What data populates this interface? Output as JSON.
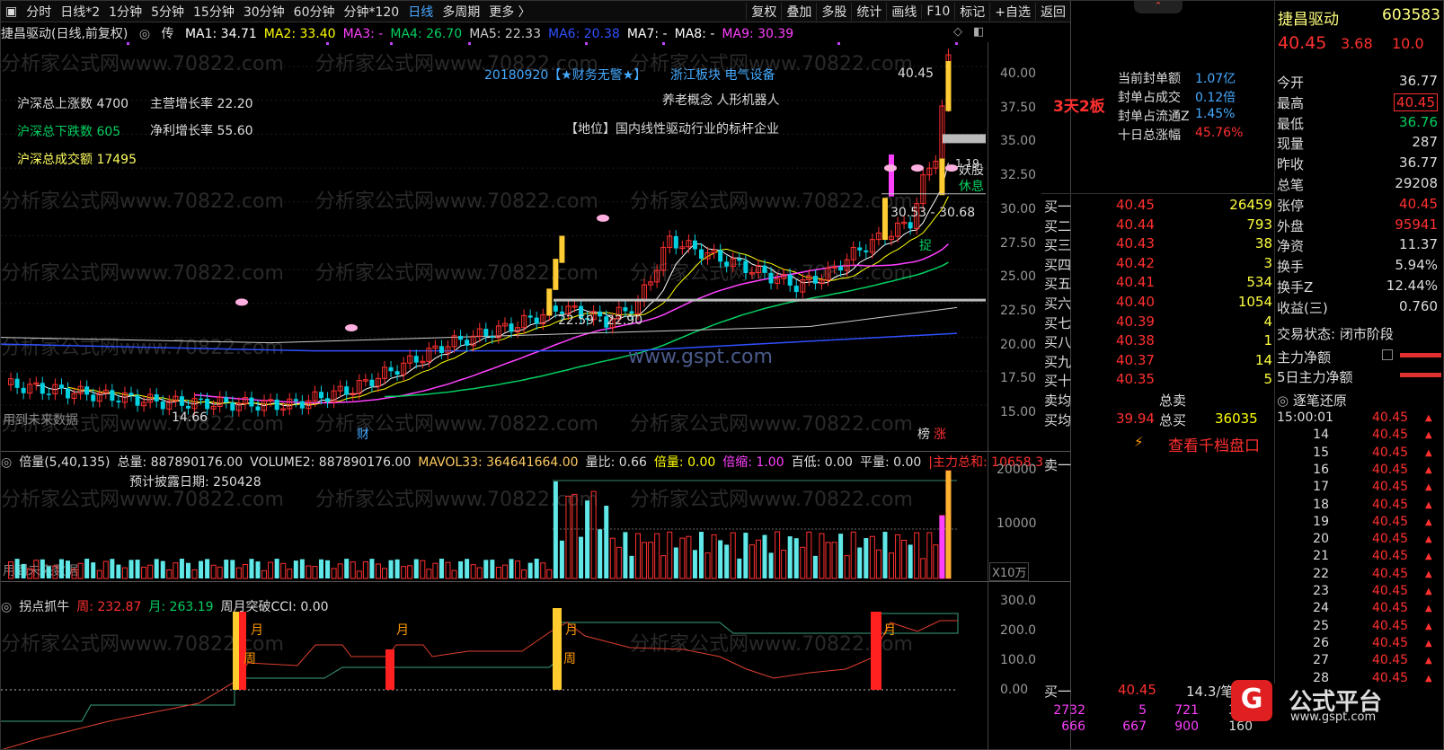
{
  "toolbar": {
    "items": [
      "分时",
      "日线*2",
      "1分钟",
      "5分钟",
      "15分钟",
      "30分钟",
      "60分钟",
      "分钟*120",
      "日线",
      "多周期",
      "更多 〉"
    ],
    "active": "日线",
    "right": [
      "复权",
      "叠加",
      "多股",
      "统计",
      "画线",
      "F10",
      "标记",
      "+自选",
      "返回"
    ]
  },
  "watermark": "分析家公式网www.70822.com",
  "site_mark": "www.gspt.com",
  "main": {
    "title": "捷昌驱动(日线,前复权)",
    "tag": "传",
    "ma": [
      {
        "t": "MA1: 34.71",
        "c": "#ffffff"
      },
      {
        "t": "MA2: 33.40",
        "c": "#ffff00"
      },
      {
        "t": "MA3: -",
        "c": "#ff40ff"
      },
      {
        "t": "MA4: 26.70",
        "c": "#00d060"
      },
      {
        "t": "MA5: 22.33",
        "c": "#cccccc"
      },
      {
        "t": "MA6: 20.38",
        "c": "#3050ff"
      },
      {
        "t": "MA7: -",
        "c": "#ffffff"
      },
      {
        "t": "MA8: -",
        "c": "#ffffff"
      },
      {
        "t": "MA9: 30.39",
        "c": "#ff40ff"
      }
    ],
    "stats": [
      {
        "t": "沪深总上涨数 4700",
        "c": "#dddddd"
      },
      {
        "t": "沪深总下跌数 605",
        "c": "#00d060"
      },
      {
        "t": "沪深总成交额 17495",
        "c": "#ffff60"
      }
    ],
    "growth": [
      "主营增长率  22.20",
      "净利增长率  55.60"
    ],
    "info1": "20180920【★财务无警★】",
    "info1b": "浙江板块  电气设备",
    "info2": "养老概念 人形机器人",
    "info3": "【地位】国内线性驱动行业的标杆企业",
    "price_labels": [
      "40.45",
      "30.53 - 30.68",
      "22.59 - 22.90",
      "14.66"
    ],
    "marks": [
      "1.19",
      "妖股",
      "休息",
      "捉",
      "财",
      "榜",
      "涨",
      "用到未来数据"
    ],
    "yticks": [
      "40.00",
      "37.50",
      "35.00",
      "32.50",
      "30.00",
      "27.50",
      "25.00",
      "22.50",
      "20.00",
      "17.50",
      "15.00"
    ]
  },
  "panel2": {
    "items": [
      {
        "t": "倍量(5,40,135)",
        "c": "#dddddd"
      },
      {
        "t": "总量: 887890176.00",
        "c": "#dddddd"
      },
      {
        "t": "VOLUME2: 887890176.00",
        "c": "#dddddd"
      },
      {
        "t": "MAVOL33: 364641664.00",
        "c": "#ffcc60"
      },
      {
        "t": "量比: 0.66",
        "c": "#dddddd"
      },
      {
        "t": "倍量: 0.00",
        "c": "#ffff00"
      },
      {
        "t": "倍缩: 1.00",
        "c": "#ff40ff"
      },
      {
        "t": "百低: 0.00",
        "c": "#dddddd"
      },
      {
        "t": "平量: 0.00",
        "c": "#dddddd"
      },
      {
        "t": "|主力总和: 10658.3",
        "c": "#ff3030"
      }
    ],
    "note": "预计披露日期:  250428",
    "yticks": [
      "20000",
      "10000"
    ],
    "unit": "X10万",
    "future": "用到未来数据"
  },
  "panel3": {
    "items": [
      {
        "t": "拐点抓牛",
        "c": "#dddddd"
      },
      {
        "t": "周: 232.87",
        "c": "#ff3030"
      },
      {
        "t": "月: 263.19",
        "c": "#00d060"
      },
      {
        "t": "周月突破CCI: 0.00",
        "c": "#dddddd"
      }
    ],
    "yticks": [
      "300.0",
      "200.0",
      "100.0",
      "0.00"
    ],
    "marks": [
      "月",
      "周",
      "月",
      "月",
      "周",
      "月"
    ]
  },
  "side": {
    "name": "捷昌驱动",
    "code": "603583",
    "price": "40.45",
    "chg": "3.68",
    "pct": "10.0",
    "board": "3天2板",
    "seal": [
      {
        "k": "当前封单额",
        "v": "1.07亿"
      },
      {
        "k": "封单占成交",
        "v": "0.12倍"
      },
      {
        "k": "封单占流通Z",
        "v": "1.45%"
      },
      {
        "k": "十日总涨幅",
        "v": "45.76%"
      }
    ],
    "right": [
      {
        "k": "今开",
        "v": "36.77",
        "c": "#dddddd"
      },
      {
        "k": "最高",
        "v": "40.45",
        "c": "#ff3030"
      },
      {
        "k": "最低",
        "v": "36.76",
        "c": "#00d060"
      },
      {
        "k": "现量",
        "v": "287",
        "c": "#dddddd"
      },
      {
        "k": "昨收",
        "v": "36.77",
        "c": "#dddddd"
      },
      {
        "k": "总笔",
        "v": "29208",
        "c": "#dddddd"
      },
      {
        "k": "张停",
        "v": "40.45",
        "c": "#ff3030"
      },
      {
        "k": "外盘",
        "v": "95941",
        "c": "#ff3030"
      },
      {
        "k": "净资",
        "v": "11.37",
        "c": "#dddddd"
      },
      {
        "k": "换手",
        "v": "5.94%",
        "c": "#dddddd"
      },
      {
        "k": "换手Z",
        "v": "12.44%",
        "c": "#dddddd"
      },
      {
        "k": "收益(三)",
        "v": "0.760",
        "c": "#dddddd"
      }
    ],
    "trade_state": "交易状态: 闭市阶段",
    "main_net": "主力净额",
    "main_net5": "5日主力净额",
    "buys": [
      {
        "k": "买一",
        "p": "40.45",
        "v": "26459"
      },
      {
        "k": "买二",
        "p": "40.44",
        "v": "793"
      },
      {
        "k": "买三",
        "p": "40.43",
        "v": "38"
      },
      {
        "k": "买四",
        "p": "40.42",
        "v": "3"
      },
      {
        "k": "买五",
        "p": "40.41",
        "v": "534"
      },
      {
        "k": "买六",
        "p": "40.40",
        "v": "1054"
      },
      {
        "k": "买七",
        "p": "40.39",
        "v": "4"
      },
      {
        "k": "买八",
        "p": "40.38",
        "v": "1"
      },
      {
        "k": "买九",
        "p": "40.37",
        "v": "14"
      },
      {
        "k": "买十",
        "p": "40.35",
        "v": "5"
      }
    ],
    "avg_sell": "卖均",
    "total_sell": "总卖",
    "avg_buy": "买均",
    "avg_buy_p": "39.94",
    "total_buy": "总买",
    "total_buy_v": "36035",
    "view_depth": "查看千档盘口",
    "sell1": "卖一",
    "tick_title": "逐笔还原",
    "ticks": [
      {
        "t": "15:00:01",
        "p": "40.45"
      },
      {
        "t": "14",
        "p": "40.45"
      },
      {
        "t": "15",
        "p": "40.45"
      },
      {
        "t": "16",
        "p": "40.45"
      },
      {
        "t": "17",
        "p": "40.45"
      },
      {
        "t": "18",
        "p": "40.45"
      },
      {
        "t": "19",
        "p": "40.45"
      },
      {
        "t": "20",
        "p": "40.45"
      },
      {
        "t": "21",
        "p": "40.45"
      },
      {
        "t": "22",
        "p": "40.45"
      },
      {
        "t": "23",
        "p": "40.45"
      },
      {
        "t": "24",
        "p": "40.45"
      },
      {
        "t": "25",
        "p": "40.45"
      },
      {
        "t": "26",
        "p": "40.45"
      },
      {
        "t": "27",
        "p": "40.45"
      },
      {
        "t": "28",
        "p": "40.45"
      }
    ],
    "b1": {
      "k": "买一",
      "p": "40.45",
      "v": "14.3/笔"
    },
    "nums1": [
      "2732",
      "5",
      "721",
      "320"
    ],
    "nums2": [
      "666",
      "667",
      "900",
      "160"
    ],
    "logo": "公式平台",
    "logo_url": "www.gspt.com"
  }
}
